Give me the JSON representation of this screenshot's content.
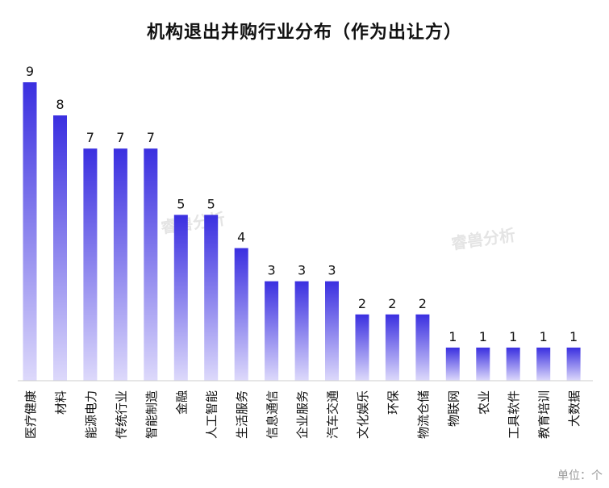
{
  "title": "机构退出并购行业分布（作为出让方）",
  "unit_label": "单位：个",
  "watermark": "睿兽分析",
  "colors": {
    "bar_top": "#3a2fe0",
    "bar_bottom": "#ddd9fb",
    "axis": "#cccccc",
    "label": "#111111"
  },
  "chart_data": {
    "type": "bar",
    "title": "机构退出并购行业分布（作为出让方）",
    "categories": [
      "医疗健康",
      "材料",
      "能源电力",
      "传统行业",
      "智能制造",
      "金融",
      "人工智能",
      "生活服务",
      "信息通信",
      "企业服务",
      "汽车交通",
      "文化娱乐",
      "环保",
      "物流仓储",
      "物联网",
      "农业",
      "工具软件",
      "教育培训",
      "大数据"
    ],
    "values": [
      9,
      8,
      7,
      7,
      7,
      5,
      5,
      4,
      3,
      3,
      3,
      2,
      2,
      2,
      1,
      1,
      1,
      1,
      1
    ],
    "ylim": [
      0,
      9
    ],
    "grid": false,
    "legend": "none"
  }
}
